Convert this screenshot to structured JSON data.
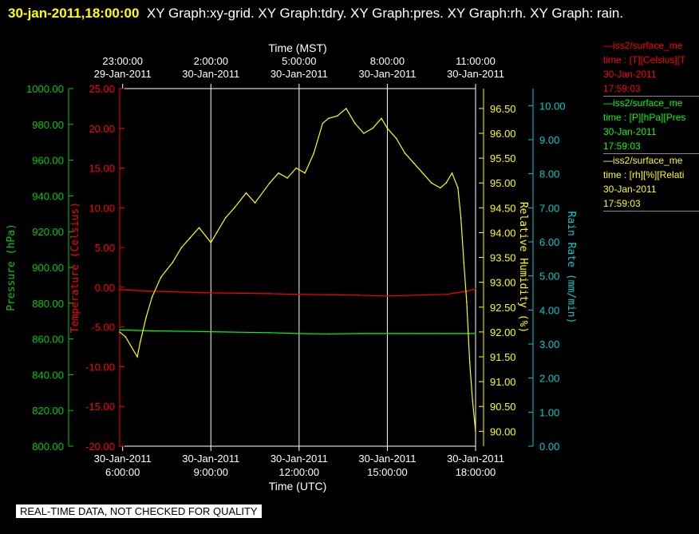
{
  "header": {
    "timestamp": "30-jan-2011,18:00:00",
    "title": "XY Graph:xy-grid.  XY Graph:tdry.  XY Graph:pres.  XY Graph:rh.  XY Graph: rain."
  },
  "legend": [
    {
      "line1": "—iss2/surface_me",
      "line2": "time : [T][Celsius][T",
      "date": "30-Jan-2011",
      "time": "17:59:03",
      "color": "#ff0000"
    },
    {
      "line1": "—iss2/surface_me",
      "line2": "time : [P][hPa][Pres",
      "date": "30-Jan-2011",
      "time": "17:59:03",
      "color": "#00ff00"
    },
    {
      "line1": "—iss2/surface_me",
      "line2": "time : [rh][%][Relati",
      "date": "30-Jan-2011",
      "time": "17:59:03",
      "color": "#ffff00"
    }
  ],
  "footer": "REAL-TIME DATA, NOT CHECKED FOR QUALITY",
  "chart_data": {
    "type": "line",
    "top_axis": {
      "label": "Time (MST)",
      "ticks": [
        {
          "t": "23:00:00",
          "d": "29-Jan-2011"
        },
        {
          "t": "2:00:00",
          "d": "30-Jan-2011"
        },
        {
          "t": "5:00:00",
          "d": "30-Jan-2011"
        },
        {
          "t": "8:00:00",
          "d": "30-Jan-2011"
        },
        {
          "t": "11:00:00",
          "d": "30-Jan-2011"
        }
      ]
    },
    "bottom_axis": {
      "label": "Time (UTC)",
      "ticks": [
        {
          "d": "30-Jan-2011",
          "t": "6:00:00"
        },
        {
          "d": "30-Jan-2011",
          "t": "9:00:00"
        },
        {
          "d": "30-Jan-2011",
          "t": "12:00:00"
        },
        {
          "d": "30-Jan-2011",
          "t": "15:00:00"
        },
        {
          "d": "30-Jan-2011",
          "t": "18:00:00"
        }
      ],
      "range_hours_utc": [
        5.9,
        18.0
      ]
    },
    "axes": {
      "pressure": {
        "label": "Pressure (hPa)",
        "color": "#00cc00",
        "ylim": [
          800,
          1000
        ],
        "ticks": [
          "800.00",
          "820.00",
          "840.00",
          "860.00",
          "880.00",
          "900.00",
          "920.00",
          "940.00",
          "960.00",
          "980.00",
          "1000.00"
        ]
      },
      "temperature": {
        "label": "Temperature (Celsius)",
        "color": "#ff0000",
        "ylim": [
          -20,
          25
        ],
        "ticks": [
          "-20.00",
          "-15.00",
          "-10.00",
          "-5.00",
          "0.00",
          "5.00",
          "10.00",
          "15.00",
          "20.00",
          "25.00"
        ]
      },
      "rh": {
        "label": "Relative Humidity (%)",
        "color": "#ffff00",
        "ylim": [
          89.7,
          96.9
        ],
        "ticks": [
          "90.00",
          "90.50",
          "91.00",
          "91.50",
          "92.00",
          "92.50",
          "93.00",
          "93.50",
          "94.00",
          "94.50",
          "95.00",
          "95.50",
          "96.00",
          "96.50"
        ]
      },
      "rain": {
        "label": "Rain Rate (mm/min)",
        "color": "#00cccc",
        "ylim": [
          0,
          10.5
        ],
        "ticks": [
          "0.00",
          "1.00",
          "2.00",
          "3.00",
          "4.00",
          "5.00",
          "6.00",
          "7.00",
          "8.00",
          "9.00",
          "10.00"
        ]
      }
    },
    "series": [
      {
        "name": "temperature",
        "color": "#ff0000",
        "x": [
          5.9,
          7,
          9,
          11,
          12,
          14,
          15,
          16,
          17,
          17.7,
          18.0
        ],
        "y": [
          -0.3,
          -0.5,
          -0.7,
          -0.8,
          -0.9,
          -1.0,
          -1.1,
          -1.0,
          -0.9,
          -0.5,
          -0.2
        ]
      },
      {
        "name": "pressure",
        "color": "#00ff00",
        "x": [
          5.9,
          7,
          9,
          11,
          12,
          13,
          14,
          15,
          16,
          17,
          18.0
        ],
        "y": [
          865,
          864.5,
          864,
          863.5,
          863,
          862.8,
          863,
          863,
          863,
          863,
          863
        ]
      },
      {
        "name": "relative_humidity",
        "color": "#ffff00",
        "x": [
          5.9,
          6.1,
          6.3,
          6.5,
          6.6,
          6.8,
          7.0,
          7.3,
          7.7,
          8.0,
          8.3,
          8.6,
          9.0,
          9.2,
          9.5,
          9.8,
          10.2,
          10.5,
          11.0,
          11.3,
          11.6,
          11.9,
          12.2,
          12.5,
          12.8,
          13.0,
          13.3,
          13.6,
          13.9,
          14.2,
          14.5,
          14.8,
          15.0,
          15.3,
          15.6,
          15.9,
          16.2,
          16.5,
          16.8,
          17.0,
          17.2,
          17.4,
          17.5,
          17.6,
          17.7,
          17.8,
          17.9,
          18.0
        ],
        "y": [
          92.0,
          91.9,
          91.7,
          91.5,
          91.8,
          92.3,
          92.7,
          93.1,
          93.4,
          93.7,
          93.9,
          94.1,
          93.8,
          94.0,
          94.3,
          94.5,
          94.8,
          94.6,
          95.0,
          95.2,
          95.1,
          95.3,
          95.2,
          95.6,
          96.2,
          96.3,
          96.35,
          96.5,
          96.2,
          96.0,
          96.1,
          96.3,
          96.1,
          95.9,
          95.6,
          95.4,
          95.2,
          95.0,
          94.9,
          95.0,
          95.2,
          94.9,
          94.3,
          93.4,
          92.6,
          91.4,
          90.6,
          90.0
        ]
      }
    ]
  }
}
